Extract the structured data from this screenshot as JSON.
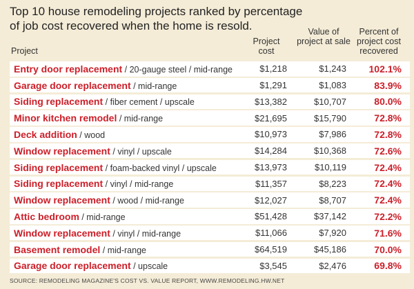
{
  "chart_data": {
    "type": "table",
    "title": "Top 10 house remodeling projects ranked by percentage of job cost recovered when the home is resold.",
    "headers": {
      "project": "Project",
      "cost": "Project cost",
      "value": "Value of project at sale",
      "pct": "Percent of project cost recovered"
    },
    "rows": [
      {
        "name": "Entry door replacement",
        "details": " / 20-gauge steel / mid-range",
        "cost": "$1,218",
        "value": "$1,243",
        "pct": "102.1%"
      },
      {
        "name": "Garage door replacement",
        "details": " / mid-range",
        "cost": "$1,291",
        "value": "$1,083",
        "pct": "83.9%"
      },
      {
        "name": "Siding replacement",
        "details": " / fiber cement / upscale",
        "cost": "$13,382",
        "value": "$10,707",
        "pct": "80.0%"
      },
      {
        "name": "Minor kitchen remodel",
        "details": " / mid-range",
        "cost": "$21,695",
        "value": "$15,790",
        "pct": "72.8%"
      },
      {
        "name": "Deck addition",
        "details": " / wood",
        "cost": "$10,973",
        "value": "$7,986",
        "pct": "72.8%"
      },
      {
        "name": "Window replacement",
        "details": " / vinyl / upscale",
        "cost": "$14,284",
        "value": "$10,368",
        "pct": "72.6%"
      },
      {
        "name": "Siding replacement",
        "details": " / foam-backed vinyl / upscale",
        "cost": "$13,973",
        "value": "$10,119",
        "pct": "72.4%"
      },
      {
        "name": "Siding replacement",
        "details": " / vinyl / mid-range",
        "cost": "$11,357",
        "value": "$8,223",
        "pct": "72.4%"
      },
      {
        "name": "Window replacement",
        "details": " / wood / mid-range",
        "cost": "$12,027",
        "value": "$8,707",
        "pct": "72.4%"
      },
      {
        "name": "Attic bedroom",
        "details": " / mid-range",
        "cost": "$51,428",
        "value": "$37,142",
        "pct": "72.2%"
      },
      {
        "name": "Window replacement",
        "details": " / vinyl / mid-range",
        "cost": "$11,066",
        "value": "$7,920",
        "pct": "71.6%"
      },
      {
        "name": "Basement remodel",
        "details": " / mid-range",
        "cost": "$64,519",
        "value": "$45,186",
        "pct": "70.0%"
      },
      {
        "name": "Garage door replacement",
        "details": " / upscale",
        "cost": "$3,545",
        "value": "$2,476",
        "pct": "69.8%"
      }
    ]
  },
  "source": "SOURCE: REMODELING MAGAZINE'S COST VS. VALUE REPORT, WWW.REMODELING.HW.NET",
  "colors": {
    "background": "#f4ecd7",
    "row_background": "#ffffff",
    "accent_red": "#cc1f29"
  }
}
